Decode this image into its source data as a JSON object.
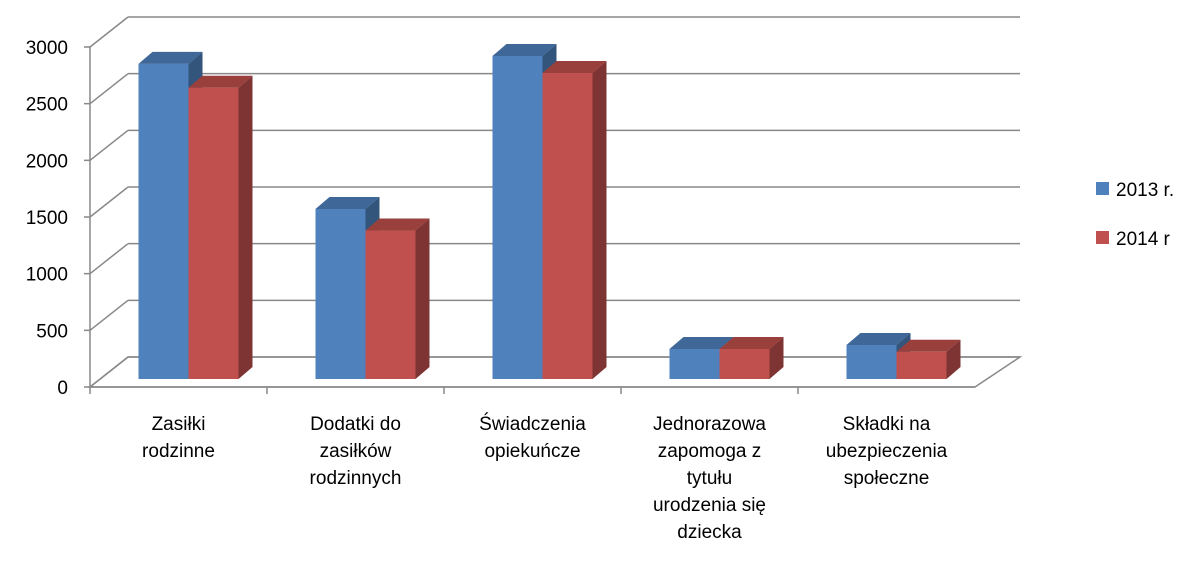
{
  "chart_data": {
    "type": "bar",
    "categories": [
      "Zasiłki rodzinne",
      "Dodatki do zasiłków rodzinnych",
      "Świadczenia opiekuńcze",
      "Jednorazowa zapomoga z tytułu urodzenia się dziecka",
      "Składki na ubezpieczenia społeczne"
    ],
    "series": [
      {
        "name": "2013 r.",
        "color": "#4f81bd",
        "values": [
          2780,
          1500,
          2850,
          265,
          300
        ]
      },
      {
        "name": "2014 r",
        "color": "#c0504d",
        "values": [
          2570,
          1310,
          2700,
          265,
          240
        ]
      }
    ],
    "ylim": [
      0,
      3000
    ],
    "yticks": [
      0,
      500,
      1000,
      1500,
      2000,
      2500,
      3000
    ],
    "grid": true,
    "legend": "right"
  }
}
